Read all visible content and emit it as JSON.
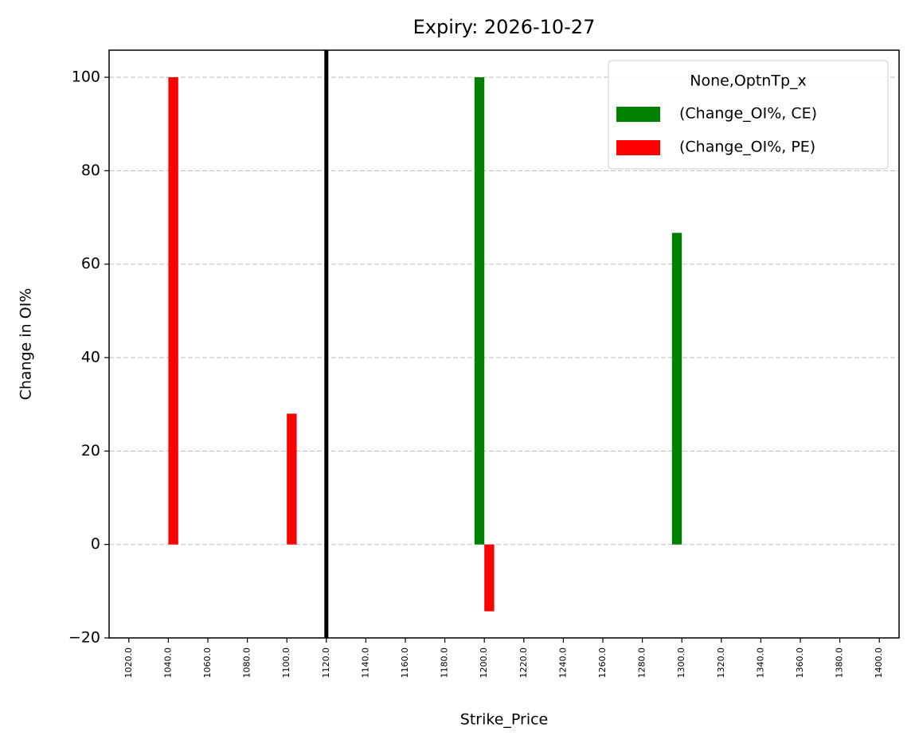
{
  "chart_data": {
    "type": "bar",
    "title": "Expiry: 2026-10-27",
    "x_label": "Strike_Price",
    "y_label": "Change in OI%",
    "categories": [
      "1020.0",
      "1040.0",
      "1060.0",
      "1080.0",
      "1100.0",
      "1120.0",
      "1140.0",
      "1160.0",
      "1180.0",
      "1200.0",
      "1220.0",
      "1240.0",
      "1260.0",
      "1280.0",
      "1300.0",
      "1320.0",
      "1340.0",
      "1360.0",
      "1380.0",
      "1400.0"
    ],
    "series": [
      {
        "name": "(Change_OI%, CE)",
        "color": "#008000",
        "values": [
          null,
          null,
          null,
          null,
          null,
          null,
          null,
          null,
          null,
          100,
          null,
          null,
          null,
          null,
          66.7,
          null,
          null,
          null,
          null,
          null
        ]
      },
      {
        "name": "(Change_OI%, PE)",
        "color": "#ff0000",
        "values": [
          null,
          100,
          null,
          null,
          28,
          null,
          null,
          null,
          null,
          -14.3,
          null,
          null,
          null,
          null,
          null,
          null,
          null,
          null,
          null,
          null
        ]
      }
    ],
    "legend_title": "None,OptnTp_x",
    "legend": "upper right",
    "vline_at": "1120.0",
    "vline_color": "#000000",
    "ylim": [
      -20,
      105.8
    ],
    "yticks": [
      {
        "value": -20,
        "label": "−20"
      },
      0,
      20,
      40,
      60,
      80,
      100
    ],
    "grid": true
  }
}
